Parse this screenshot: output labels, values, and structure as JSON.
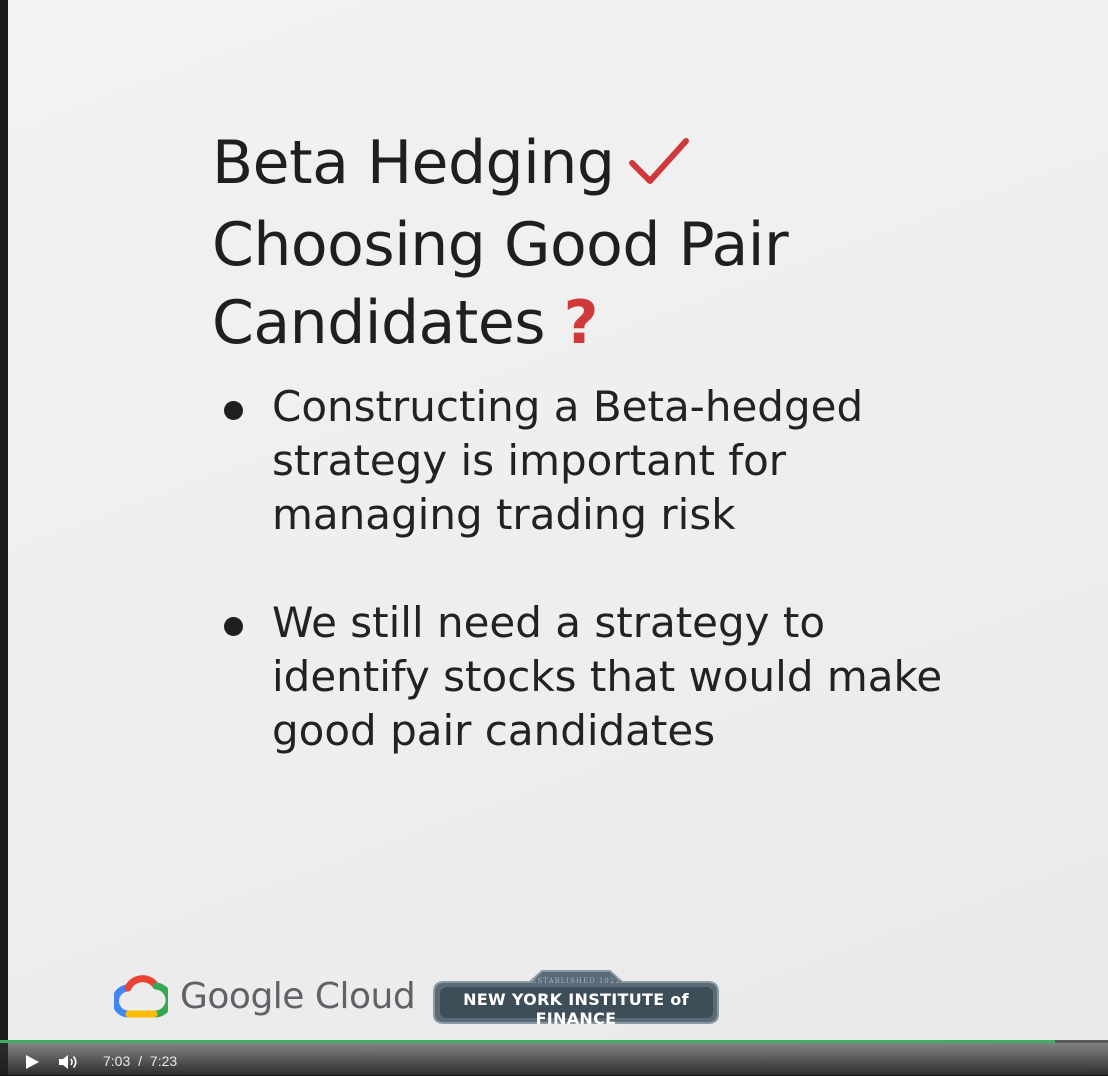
{
  "slide": {
    "title": {
      "line1": "Beta Hedging",
      "line1_mark_icon": "checkmark-icon",
      "line2": "Choosing Good Pair",
      "line3": "Candidates",
      "line3_mark": "?"
    },
    "bullets": [
      "Constructing a Beta-hedged strategy is important for managing trading risk",
      "We still need a strategy to identify stocks that would make good pair candidates"
    ],
    "accent_color": "#d0393a"
  },
  "logos": {
    "google_cloud": "Google Cloud",
    "nyif_established": "ESTABLISHED 1922",
    "nyif_name": "NEW YORK INSTITUTE of FINANCE"
  },
  "player": {
    "current_time": "7:03",
    "separator": "/",
    "duration": "7:23",
    "progress_fraction": 0.952,
    "progress_color": "#3fae63",
    "play_icon": "play-icon",
    "volume_icon": "volume-icon"
  }
}
